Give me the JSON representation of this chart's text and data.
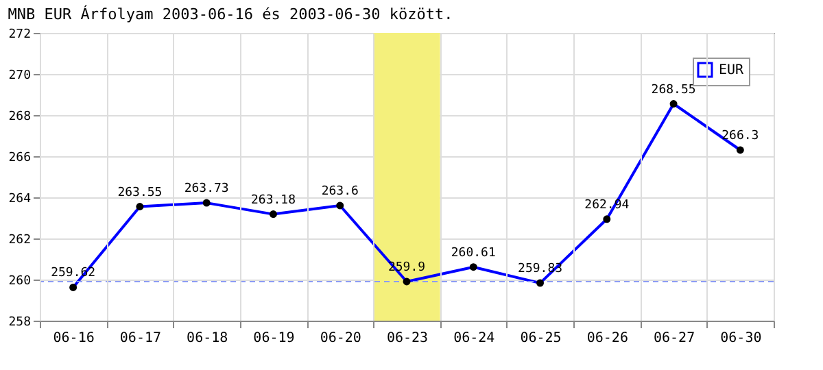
{
  "chart_data": {
    "type": "line",
    "title": "MNB EUR Árfolyam 2003-06-16 és 2003-06-30 között.",
    "categories": [
      "06-16",
      "06-17",
      "06-18",
      "06-19",
      "06-20",
      "06-23",
      "06-24",
      "06-25",
      "06-26",
      "06-27",
      "06-30"
    ],
    "series": [
      {
        "name": "EUR",
        "color": "#0000ff",
        "values": [
          259.62,
          263.55,
          263.73,
          263.18,
          263.6,
          259.9,
          260.61,
          259.83,
          262.94,
          268.55,
          266.3
        ]
      }
    ],
    "ylim": [
      258,
      272
    ],
    "yticks": [
      258,
      260,
      262,
      264,
      266,
      268,
      270,
      272
    ],
    "data_labels": true,
    "marker": "circle",
    "line_style": "solid",
    "grid": true,
    "legend": "top right",
    "ref_lines": [
      {
        "axis": "y",
        "value": 259.9,
        "color": "#8c9cf5",
        "line_style": "dashed"
      }
    ],
    "bands": [
      {
        "axis": "x",
        "from": "06-23",
        "to": "06-23",
        "color": "#f4f07c"
      }
    ]
  }
}
